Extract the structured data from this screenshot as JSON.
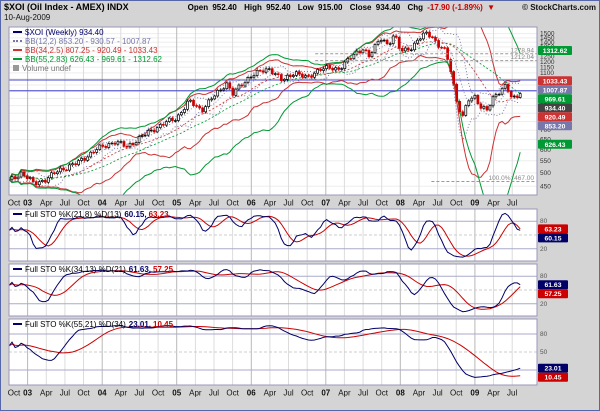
{
  "header": {
    "title": "$XOI (Oil Index - AMEX) INDX",
    "date": "10-Aug-2009",
    "copyright": "© StockCharts.com",
    "quote": {
      "open_label": "Open",
      "open_value": "952.40",
      "high_label": "High",
      "high_value": "952.40",
      "low_label": "Low",
      "low_value": "915.00",
      "close_label": "Close",
      "close_value": "934.40",
      "chg_label": "Chg",
      "chg_value": "-17.90 (-1.89%)",
      "chg_arrow": "▼"
    }
  },
  "main_legend": {
    "price": "$XOI (Weekly) 934.40",
    "bb12": "BB(12,2) 853.20 - 930.57 - 1007.87",
    "bb34": "BB(34,2.5) 807.25 - 920.49 - 1033.43",
    "bb55": "BB(55,2.83) 626.43 - 969.61 - 1312.62",
    "volume": "Volume undef"
  },
  "panel_legends": [
    {
      "label": "Full STO %K(21,8) %D(13)",
      "k": "60.15,",
      "d": "63.23"
    },
    {
      "label": "Full STO %K(34,13) %D(21)",
      "k": "61.63,",
      "d": "57.25"
    },
    {
      "label": "Full STO %K(55,21) %D(34)",
      "k": "23.01,",
      "d": "10.45"
    }
  ],
  "chart_data": {
    "type": "candlestick",
    "title": "$XOI (Oil Index - AMEX) INDX",
    "timeframe": "weekly",
    "x_range_months": 85,
    "data_end_month": 82.3,
    "y_axis": {
      "scale": "log",
      "min": 420,
      "max": 1580,
      "tick_min": 450,
      "tick_max": 1500,
      "tick_step": 50
    },
    "ticks": [
      {
        "m": 0,
        "label": "Oct"
      },
      {
        "m": 3,
        "label": "03",
        "bold": true
      },
      {
        "m": 6,
        "label": "Apr"
      },
      {
        "m": 9,
        "label": "Jul"
      },
      {
        "m": 12,
        "label": "Oct"
      },
      {
        "m": 15,
        "label": "04",
        "bold": true
      },
      {
        "m": 18,
        "label": "Apr"
      },
      {
        "m": 21,
        "label": "Jul"
      },
      {
        "m": 24,
        "label": "Oct"
      },
      {
        "m": 27,
        "label": "05",
        "bold": true
      },
      {
        "m": 30,
        "label": "Apr"
      },
      {
        "m": 33,
        "label": "Jul"
      },
      {
        "m": 36,
        "label": "Oct"
      },
      {
        "m": 39,
        "label": "06",
        "bold": true
      },
      {
        "m": 42,
        "label": "Apr"
      },
      {
        "m": 45,
        "label": "Jul"
      },
      {
        "m": 48,
        "label": "Oct"
      },
      {
        "m": 51,
        "label": "07",
        "bold": true
      },
      {
        "m": 54,
        "label": "Apr"
      },
      {
        "m": 57,
        "label": "Jul"
      },
      {
        "m": 60,
        "label": "Oct"
      },
      {
        "m": 63,
        "label": "08",
        "bold": true
      },
      {
        "m": 66,
        "label": "Apr"
      },
      {
        "m": 69,
        "label": "Jul"
      },
      {
        "m": 72,
        "label": "Oct"
      },
      {
        "m": 75,
        "label": "09",
        "bold": true
      },
      {
        "m": 78,
        "label": "Apr"
      },
      {
        "m": 81,
        "label": "Jul"
      }
    ],
    "price_waypoints": [
      [
        0,
        470
      ],
      [
        2,
        500
      ],
      [
        4,
        460
      ],
      [
        6,
        475
      ],
      [
        8,
        510
      ],
      [
        11,
        540
      ],
      [
        14,
        600
      ],
      [
        17,
        640
      ],
      [
        19,
        615
      ],
      [
        23,
        700
      ],
      [
        25,
        740
      ],
      [
        27,
        770
      ],
      [
        29,
        880
      ],
      [
        31,
        820
      ],
      [
        34,
        960
      ],
      [
        35,
        1020
      ],
      [
        36,
        930
      ],
      [
        39,
        1080
      ],
      [
        42,
        1140
      ],
      [
        44,
        1030
      ],
      [
        46,
        1110
      ],
      [
        48,
        1050
      ],
      [
        50,
        1140
      ],
      [
        53,
        1135
      ],
      [
        57,
        1340
      ],
      [
        58,
        1250
      ],
      [
        60,
        1460
      ],
      [
        61,
        1370
      ],
      [
        62,
        1480
      ],
      [
        63,
        1310
      ],
      [
        65,
        1350
      ],
      [
        67,
        1510
      ],
      [
        68,
        1490
      ],
      [
        69,
        1360
      ],
      [
        70,
        1330
      ],
      [
        71,
        1160
      ],
      [
        72,
        890
      ],
      [
        73,
        770
      ],
      [
        74,
        890
      ],
      [
        75,
        915
      ],
      [
        76,
        840
      ],
      [
        77,
        815
      ],
      [
        78,
        905
      ],
      [
        79,
        960
      ],
      [
        80,
        1000
      ],
      [
        81,
        885
      ],
      [
        82.3,
        934.4
      ]
    ],
    "last_close": 934.4,
    "overlays": {
      "bollinger": [
        {
          "period_weeks": 12,
          "stdev": 2,
          "color": "#7777aa",
          "dash": "1,2",
          "values": "853.20 - 930.57 - 1007.87"
        },
        {
          "period_weeks": 34,
          "stdev": 2.5,
          "color": "#cc3333",
          "dash": "",
          "values": "807.25 - 920.49 - 1033.43"
        },
        {
          "period_weeks": 55,
          "stdev": 2.83,
          "color": "#009933",
          "dash": "",
          "values": "626.43 - 969.61 - 1312.62"
        }
      ],
      "hlines_blue": [
        1040,
        955
      ],
      "dashed_annotations": [
        {
          "value": 1278.94,
          "label": "1278.94",
          "x0": 0.58
        },
        {
          "value": 1212.04,
          "label": "1212.04",
          "x0": 0.58
        },
        {
          "value": 467.0,
          "label": "100.0%: 467.00",
          "x0": 0.8
        }
      ]
    },
    "axis_badges": [
      {
        "value": 1312.62,
        "label": "1312.62",
        "color": "#009933"
      },
      {
        "value": 1033.43,
        "label": "1033.43",
        "color": "#cc3333"
      },
      {
        "value": 1007.87,
        "label": "1007.87",
        "color": "#7777aa"
      },
      {
        "value": 969.61,
        "label": "969.61",
        "color": "#009933"
      },
      {
        "value": 934.4,
        "label": "934.40",
        "color": "#444444"
      },
      {
        "value": 920.49,
        "label": "920.49",
        "color": "#cc3333"
      },
      {
        "value": 853.2,
        "label": "853.20",
        "color": "#7777aa"
      },
      {
        "value": 626.43,
        "label": "626.43",
        "color": "#009933"
      }
    ],
    "panels": [
      {
        "name": "Full STO %K(21,8) %D(13)",
        "k_period_weeks": 21,
        "k_smooth_weeks": 8,
        "d_weeks": 13,
        "k_value": 60.15,
        "d_value": 63.23
      },
      {
        "name": "Full STO %K(34,13) %D(21)",
        "k_period_weeks": 34,
        "k_smooth_weeks": 13,
        "d_weeks": 21,
        "k_value": 61.63,
        "d_value": 57.25
      },
      {
        "name": "Full STO %K(55,21) %D(34)",
        "k_period_weeks": 55,
        "k_smooth_weeks": 21,
        "d_weeks": 34,
        "k_value": 23.01,
        "d_value": 10.45
      }
    ],
    "panel_ref_lines": [
      80,
      50,
      20
    ],
    "colors": {
      "up": "#000000",
      "down": "#cc0000",
      "k_line": "#000066",
      "d_line": "#cc0000",
      "hline_blue": "#4444cc",
      "change_negative": "#cc0000"
    }
  }
}
